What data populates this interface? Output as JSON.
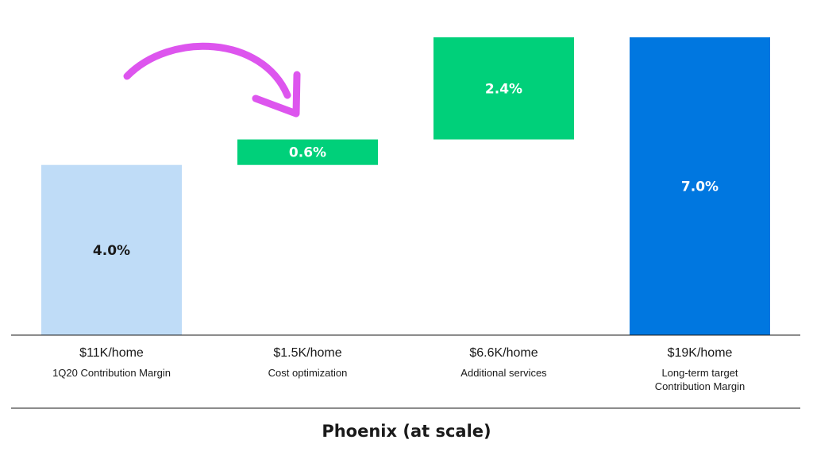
{
  "chart_data": {
    "type": "bar",
    "subtype": "waterfall",
    "categories": [
      "1Q20 Contribution Margin",
      "Cost optimization",
      "Additional services",
      "Long-term target Contribution Margin"
    ],
    "category_lines": [
      [
        "1Q20 Contribution Margin"
      ],
      [
        "Cost optimization"
      ],
      [
        "Additional services"
      ],
      [
        "Long-term target",
        "Contribution Margin"
      ]
    ],
    "amounts": [
      "$11K/home",
      "$1.5K/home",
      "$6.6K/home",
      "$19K/home"
    ],
    "values": [
      4.0,
      0.6,
      2.4,
      7.0
    ],
    "labels": [
      "4.0%",
      "0.6%",
      "2.4%",
      "7.0%"
    ],
    "kinds": [
      "total",
      "increase",
      "increase",
      "total"
    ],
    "ylim": [
      0,
      7.0
    ],
    "grid": false,
    "caption": "Phoenix (at scale)",
    "colors": {
      "start": "#bfdcf7",
      "increase": "#00d07a",
      "end": "#0077e0",
      "arrow": "#dd55ee",
      "axis": "#1a1a1a"
    },
    "annotation": {
      "icon": "curved-arrow-icon"
    }
  }
}
